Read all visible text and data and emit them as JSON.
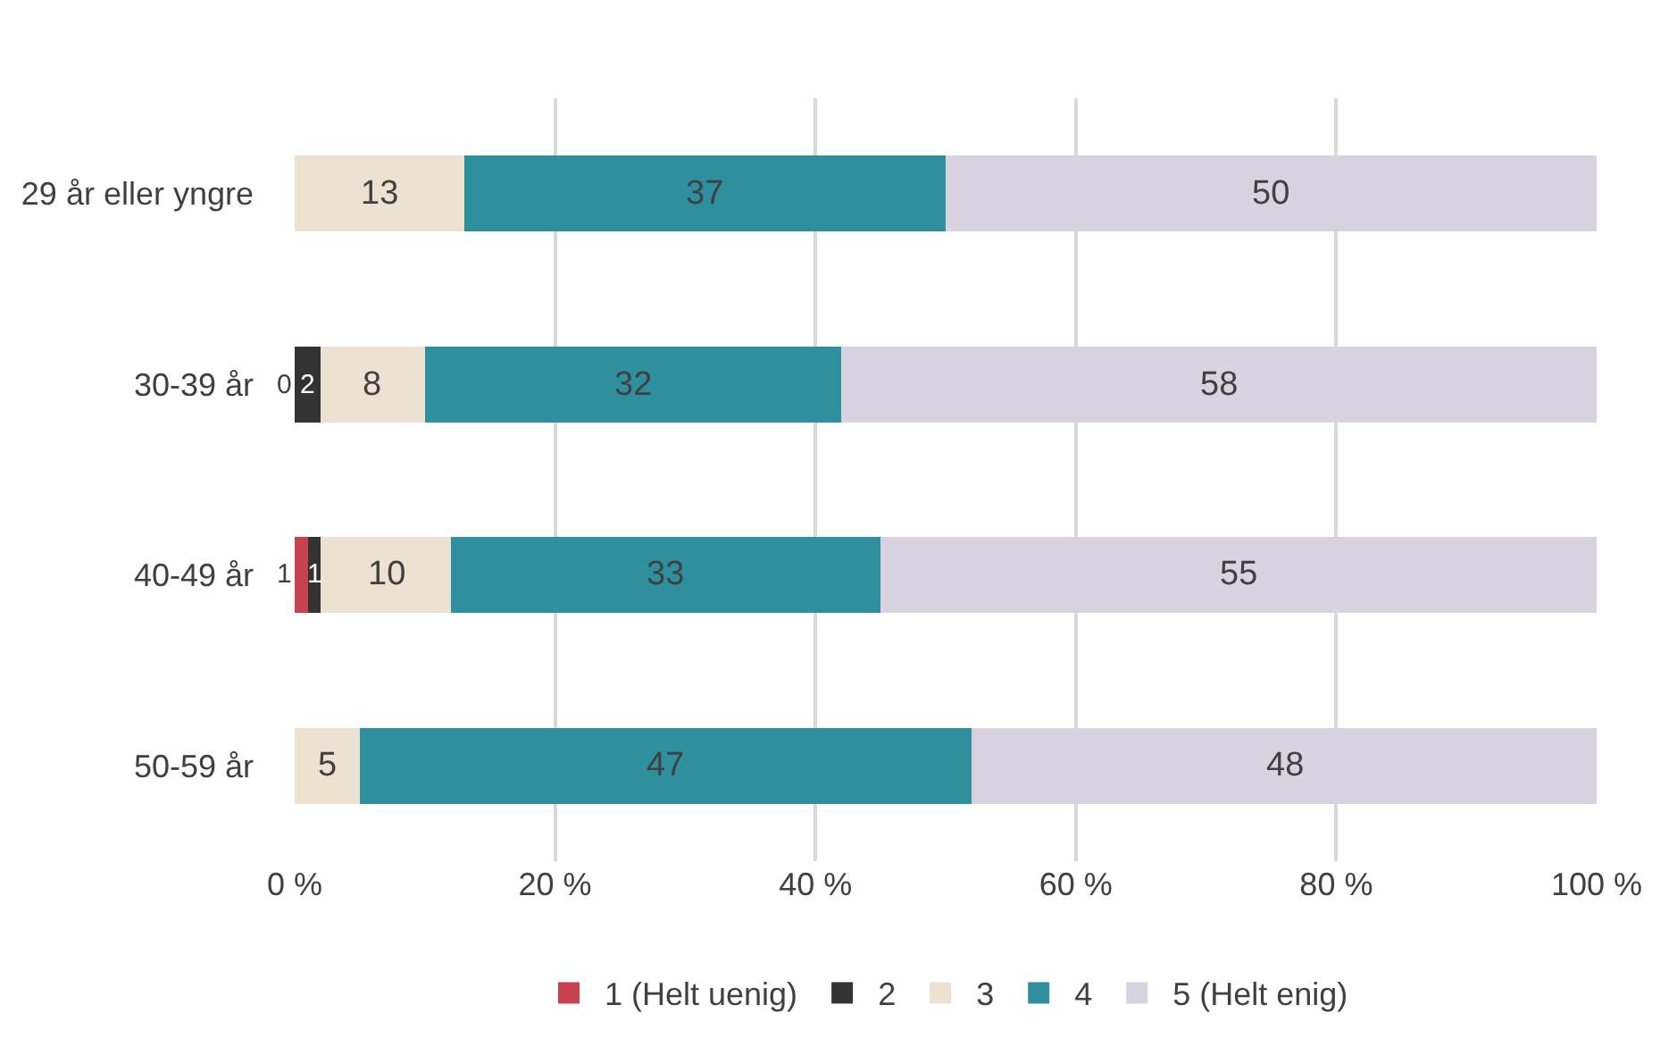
{
  "chart_data": {
    "type": "bar",
    "orientation": "horizontal",
    "stacked": true,
    "data_labels": true,
    "categories": [
      "29 år eller yngre",
      "30-39 år",
      "40-49 år",
      "50-59 år"
    ],
    "series": [
      {
        "name": "1 (Helt uenig)",
        "color": "#c9404e",
        "values": [
          null,
          null,
          1,
          null
        ]
      },
      {
        "name": "2",
        "color": "#333333",
        "values": [
          null,
          2,
          1,
          null
        ]
      },
      {
        "name": "3",
        "color": "#ede1d1",
        "values": [
          13,
          8,
          10,
          5
        ]
      },
      {
        "name": "4",
        "color": "#2e8f9e",
        "values": [
          37,
          32,
          33,
          47
        ]
      },
      {
        "name": "5 (Helt enig)",
        "color": "#d9d3e0",
        "values": [
          50,
          58,
          55,
          48
        ]
      }
    ],
    "xlim": [
      0,
      100
    ],
    "xticks": [
      {
        "value": 0,
        "label": "0 %"
      },
      {
        "value": 20,
        "label": "20 %"
      },
      {
        "value": 40,
        "label": "40 %"
      },
      {
        "value": 60,
        "label": "60 %"
      },
      {
        "value": 80,
        "label": "80 %"
      },
      {
        "value": 100,
        "label": "100 %"
      }
    ],
    "annotations": [
      {
        "text": "0",
        "x": 0,
        "y": "30-39 år"
      }
    ],
    "grid": "x",
    "legend": "bottom"
  }
}
